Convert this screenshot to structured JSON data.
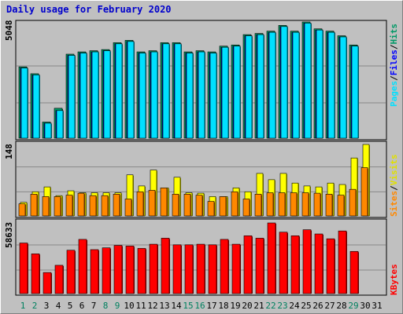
{
  "title": "Daily usage for February 2020",
  "chart_data": [
    {
      "type": "bar",
      "panel": "hits-files-pages",
      "ymax_label": "5048",
      "ymax": 5048,
      "series_labels": [
        "Pages",
        "Files",
        "Hits"
      ],
      "separator": "/",
      "colors": {
        "hits": "#009966",
        "files": "#0000ff",
        "pages": "#00e0ff"
      },
      "categories": [
        "1",
        "2",
        "3",
        "4",
        "5",
        "6",
        "7",
        "8",
        "9",
        "10",
        "11",
        "12",
        "13",
        "14",
        "15",
        "16",
        "17",
        "18",
        "19",
        "20",
        "21",
        "22",
        "23",
        "24",
        "25",
        "26",
        "27",
        "28",
        "29",
        "30",
        "31"
      ],
      "series": [
        {
          "name": "Hits",
          "values": [
            3100,
            2800,
            700,
            1300,
            3650,
            3750,
            3800,
            3850,
            4150,
            4250,
            3750,
            3800,
            4150,
            4150,
            3750,
            3800,
            3750,
            4000,
            4050,
            4500,
            4550,
            4650,
            4900,
            4650,
            5048,
            4750,
            4650,
            4450,
            4050,
            0,
            0
          ]
        },
        {
          "name": "Files",
          "values": [
            3050,
            2750,
            650,
            1200,
            3600,
            3700,
            3750,
            3800,
            4100,
            4200,
            3700,
            3750,
            4100,
            4100,
            3700,
            3750,
            3700,
            3950,
            4000,
            4450,
            4500,
            4600,
            4850,
            4600,
            5000,
            4700,
            4600,
            4400,
            4000,
            0,
            0
          ]
        },
        {
          "name": "Pages",
          "values": [
            3050,
            2750,
            650,
            1200,
            3600,
            3700,
            3750,
            3800,
            4100,
            4200,
            3700,
            3750,
            4100,
            4100,
            3700,
            3750,
            3700,
            3950,
            4000,
            4450,
            4500,
            4600,
            4850,
            4600,
            5000,
            4700,
            4600,
            4400,
            4000,
            0,
            0
          ]
        }
      ]
    },
    {
      "type": "bar",
      "panel": "visits-sites",
      "ymax_label": "148",
      "ymax": 148,
      "series_labels": [
        "Sites",
        "Visits"
      ],
      "separator": "/",
      "colors": {
        "visits": "#ffff00",
        "sites": "#ff8800"
      },
      "series": [
        {
          "name": "Visits",
          "values": [
            28,
            50,
            60,
            42,
            52,
            48,
            48,
            48,
            48,
            85,
            62,
            95,
            58,
            80,
            48,
            47,
            40,
            40,
            58,
            50,
            88,
            75,
            88,
            68,
            62,
            60,
            68,
            65,
            120,
            148,
            0
          ]
        },
        {
          "name": "Sites",
          "values": [
            25,
            45,
            40,
            40,
            43,
            47,
            42,
            42,
            45,
            35,
            50,
            53,
            58,
            45,
            45,
            43,
            30,
            40,
            50,
            35,
            45,
            48,
            48,
            48,
            48,
            47,
            45,
            43,
            55,
            100,
            0
          ]
        }
      ]
    },
    {
      "type": "bar",
      "panel": "kbytes",
      "ymax_label": "58633",
      "ymax": 58633,
      "series_labels": [
        "KBytes"
      ],
      "colors": {
        "kbytes": "#ff0000"
      },
      "series": [
        {
          "name": "KBytes",
          "values": [
            42000,
            33000,
            17500,
            23500,
            36000,
            45000,
            36500,
            38000,
            40000,
            39500,
            37500,
            41000,
            46000,
            40500,
            40500,
            41000,
            40500,
            45000,
            41000,
            48000,
            46000,
            58633,
            51000,
            48000,
            53000,
            49500,
            45500,
            52000,
            35000,
            0,
            0
          ]
        }
      ]
    }
  ],
  "xaxis": {
    "labels": [
      "1",
      "2",
      "3",
      "4",
      "5",
      "6",
      "7",
      "8",
      "9",
      "10",
      "11",
      "12",
      "13",
      "14",
      "15",
      "16",
      "17",
      "18",
      "19",
      "20",
      "21",
      "22",
      "23",
      "24",
      "25",
      "26",
      "27",
      "28",
      "29",
      "30",
      "31"
    ],
    "weekend_days": [
      1,
      2,
      8,
      9,
      15,
      16,
      22,
      23,
      29
    ],
    "weekday_color": "#000000",
    "weekend_color": "#00805f"
  }
}
